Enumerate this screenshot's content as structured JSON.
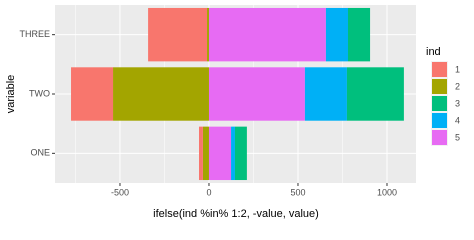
{
  "chart_data": {
    "type": "bar",
    "orientation": "horizontal",
    "stacked": true,
    "x_label": "ifelse(ind %in% 1:2, -value, value)",
    "y_label": "variable",
    "legend_title": "ind",
    "legend_position": "right",
    "categories": [
      "ONE",
      "TWO",
      "THREE"
    ],
    "series": [
      {
        "name": "1",
        "color": "#F8766D",
        "values": [
          -22,
          -236,
          -331
        ]
      },
      {
        "name": "2",
        "color": "#A3A500",
        "values": [
          -34,
          -539,
          -11
        ]
      },
      {
        "name": "3",
        "color": "#00BF7D",
        "values": [
          67,
          320,
          124
        ]
      },
      {
        "name": "4",
        "color": "#00B0F6",
        "values": [
          22,
          236,
          124
        ]
      },
      {
        "name": "5",
        "color": "#E76BF3",
        "values": [
          124,
          539,
          657
        ]
      }
    ],
    "xlim": [
      -865,
      1163
    ],
    "xticks": [
      -500,
      0,
      500,
      1000
    ],
    "grid": true
  }
}
